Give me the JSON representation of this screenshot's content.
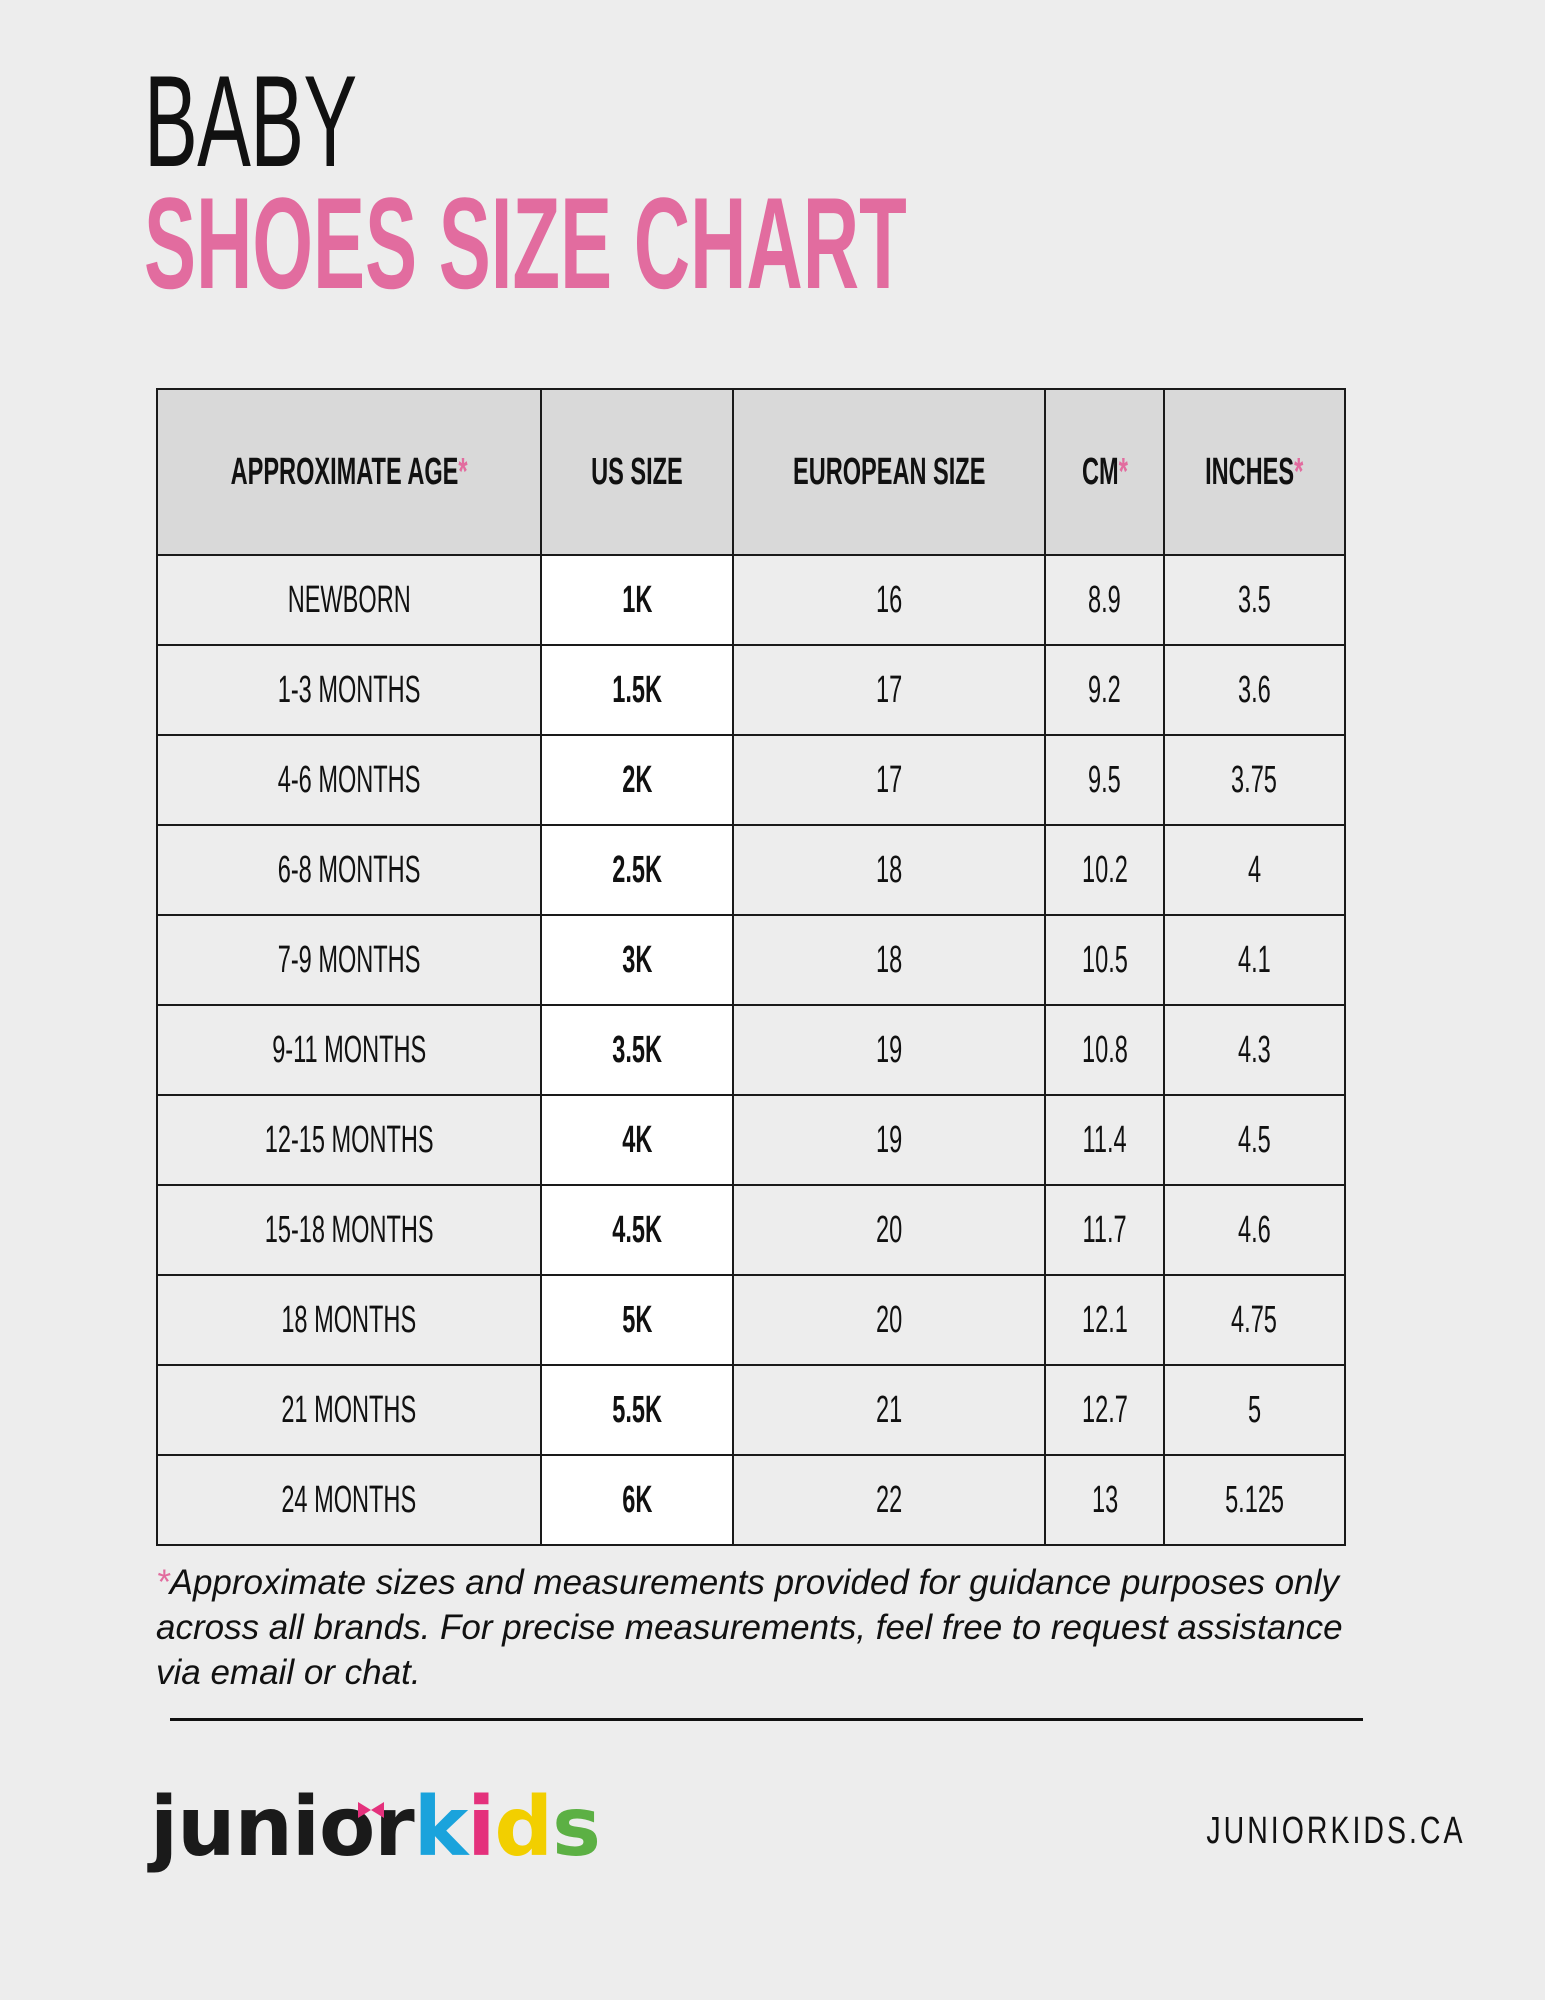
{
  "title": {
    "line1": "BABY",
    "line2": "SHOES SIZE CHART"
  },
  "colors": {
    "accent": "#e26c9f",
    "header_bg": "#d9d9d9",
    "background": "#ededed"
  },
  "table": {
    "headers": [
      {
        "label": "APPROXIMATE AGE",
        "star": "*"
      },
      {
        "label": "US SIZE",
        "star": ""
      },
      {
        "label": "EUROPEAN SIZE",
        "star": ""
      },
      {
        "label": "CM",
        "star": "*"
      },
      {
        "label": "INCHES",
        "star": "*"
      }
    ],
    "rows": [
      [
        "NEWBORN",
        "1K",
        "16",
        "8.9",
        "3.5"
      ],
      [
        "1-3 MONTHS",
        "1.5K",
        "17",
        "9.2",
        "3.6"
      ],
      [
        "4-6 MONTHS",
        "2K",
        "17",
        "9.5",
        "3.75"
      ],
      [
        "6-8 MONTHS",
        "2.5K",
        "18",
        "10.2",
        "4"
      ],
      [
        "7-9 MONTHS",
        "3K",
        "18",
        "10.5",
        "4.1"
      ],
      [
        "9-11 MONTHS",
        "3.5K",
        "19",
        "10.8",
        "4.3"
      ],
      [
        "12-15 MONTHS",
        "4K",
        "19",
        "11.4",
        "4.5"
      ],
      [
        "15-18 MONTHS",
        "4.5K",
        "20",
        "11.7",
        "4.6"
      ],
      [
        "18 MONTHS",
        "5K",
        "20",
        "12.1",
        "4.75"
      ],
      [
        "21 MONTHS",
        "5.5K",
        "21",
        "12.7",
        "5"
      ],
      [
        "24 MONTHS",
        "6K",
        "22",
        "13",
        "5.125"
      ]
    ]
  },
  "footnote": {
    "star": "*",
    "text": "Approximate sizes and measurements provided for guidance purposes only across all brands. For precise measurements, feel free to request assistance via email or chat."
  },
  "footer": {
    "logo": {
      "part1": "junior",
      "k": "k",
      "i": "i",
      "d": "d",
      "s": "s",
      "colors": {
        "k": "#1aa3dc",
        "i": "#e4317c",
        "d": "#fde11c",
        "s": "#5cb044",
        "bow": "#e4317c"
      }
    },
    "website": "JUNIORKIDS.CA"
  }
}
